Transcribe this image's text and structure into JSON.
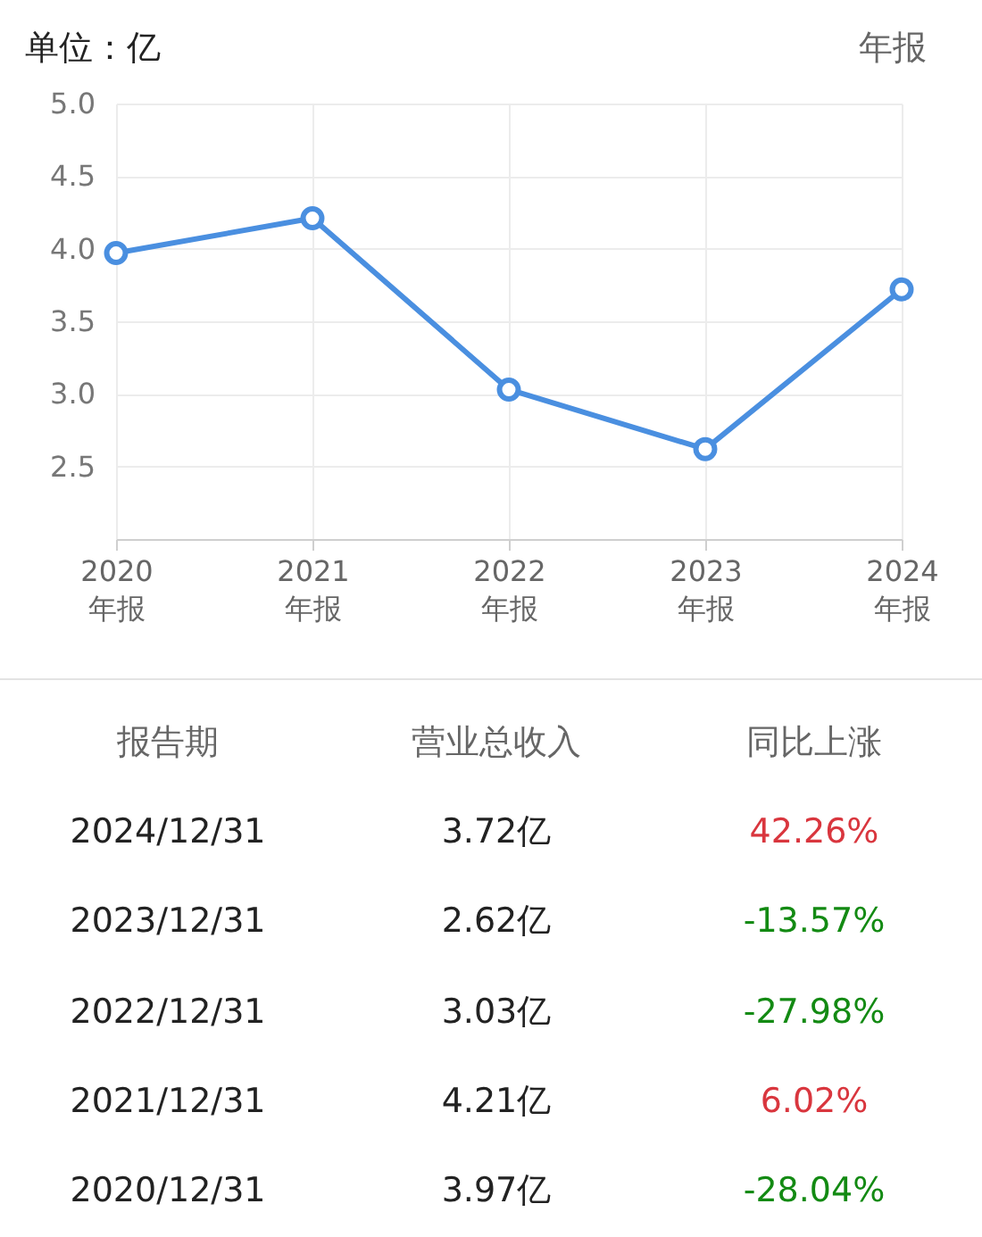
{
  "chart_data": {
    "type": "line",
    "ylabel": "单位：亿",
    "categories": [
      "2020\n年报",
      "2021\n年报",
      "2022\n年报",
      "2023\n年报",
      "2024\n年报"
    ],
    "series": [
      {
        "color": "#4a8fe0",
        "values": [
          3.97,
          4.21,
          3.03,
          2.62,
          3.72
        ]
      }
    ],
    "value_labels": [
      "3.97亿",
      "4.21亿",
      "3.03亿",
      "2.62亿",
      "3.72亿"
    ],
    "ylim": [
      2.0,
      5.0
    ],
    "yticks": [
      {
        "value": 2.5,
        "label": "2.5"
      },
      {
        "value": 3,
        "label": "3.0"
      },
      {
        "value": 3.5,
        "label": "3.5"
      },
      {
        "value": 4,
        "label": "4.0"
      },
      {
        "value": 4.5,
        "label": "4.5"
      },
      {
        "value": 5,
        "label": "5.0"
      }
    ],
    "grid": true,
    "marker": "circle",
    "line_style": "solid",
    "annotations": [
      "年报",
      "报告期",
      "营业总收入",
      "同比上涨",
      "2024/12/31",
      "2023/12/31",
      "2022/12/31",
      "2021/12/31",
      "2020/12/31",
      "42.26%",
      "-13.57%",
      "-27.98%",
      "6.02%",
      "-28.04%"
    ]
  }
}
